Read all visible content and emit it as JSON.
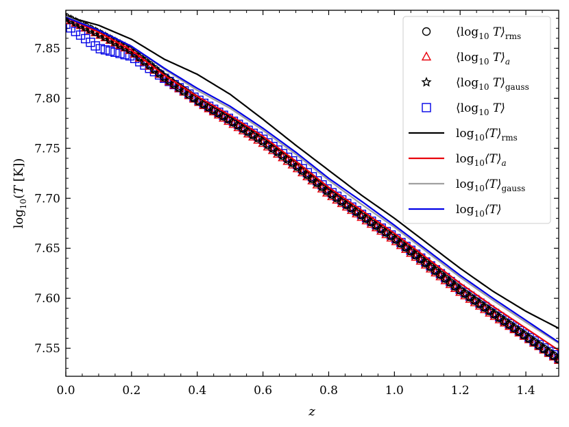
{
  "chart_data": {
    "type": "line",
    "xlabel": "z",
    "ylabel": "log10(T [K])",
    "xlim": [
      0.0,
      1.5
    ],
    "ylim": [
      7.522,
      7.888
    ],
    "xticks": [
      0.0,
      0.2,
      0.4,
      0.6,
      0.8,
      1.0,
      1.2,
      1.4
    ],
    "xtick_labels": [
      "0.0",
      "0.2",
      "0.4",
      "0.6",
      "0.8",
      "1.0",
      "1.2",
      "1.4"
    ],
    "yticks": [
      7.55,
      7.6,
      7.65,
      7.7,
      7.75,
      7.8,
      7.85
    ],
    "ytick_labels": [
      "7.55",
      "7.60",
      "7.65",
      "7.70",
      "7.75",
      "7.80",
      "7.85"
    ],
    "grid": false,
    "legend_position": "top-right",
    "series": [
      {
        "name": "⟨log10 T⟩rms",
        "label_main": "⟨log",
        "label_sub": "10",
        "label_rest": " T⟩",
        "label_tail": "rms",
        "kind": "marker",
        "marker": "circle",
        "color": "#000000",
        "x": [
          0.0,
          0.1,
          0.2,
          0.3,
          0.4,
          0.5,
          0.6,
          0.7,
          0.8,
          0.9,
          1.0,
          1.1,
          1.2,
          1.3,
          1.4,
          1.5
        ],
        "y": [
          7.881,
          7.865,
          7.848,
          7.821,
          7.798,
          7.778,
          7.757,
          7.733,
          7.706,
          7.683,
          7.66,
          7.634,
          7.608,
          7.585,
          7.562,
          7.539
        ]
      },
      {
        "name": "⟨log10 T⟩a",
        "label_main": "⟨log",
        "label_sub": "10",
        "label_rest": " T⟩",
        "label_tail": "a",
        "kind": "marker",
        "marker": "triangle",
        "color": "#e8000b",
        "x": [
          0.0,
          0.1,
          0.2,
          0.3,
          0.4,
          0.5,
          0.6,
          0.7,
          0.8,
          0.9,
          1.0,
          1.1,
          1.2,
          1.3,
          1.4,
          1.5
        ],
        "y": [
          7.88,
          7.864,
          7.847,
          7.82,
          7.797,
          7.776,
          7.755,
          7.731,
          7.704,
          7.681,
          7.658,
          7.632,
          7.606,
          7.583,
          7.561,
          7.538
        ]
      },
      {
        "name": "⟨log10 T⟩gauss",
        "label_main": "⟨log",
        "label_sub": "10",
        "label_rest": " T⟩",
        "label_tail": "gauss",
        "kind": "marker",
        "marker": "star",
        "color": "#000000",
        "x": [
          0.0,
          0.1,
          0.2,
          0.3,
          0.4,
          0.5,
          0.6,
          0.7,
          0.8,
          0.9,
          1.0,
          1.1,
          1.2,
          1.3,
          1.4,
          1.5
        ],
        "y": [
          7.881,
          7.865,
          7.848,
          7.821,
          7.798,
          7.778,
          7.757,
          7.733,
          7.706,
          7.683,
          7.66,
          7.634,
          7.608,
          7.585,
          7.562,
          7.539
        ]
      },
      {
        "name": "⟨log10 T⟩",
        "label_main": "⟨log",
        "label_sub": "10",
        "label_rest": " T⟩",
        "label_tail": "",
        "kind": "marker",
        "marker": "square",
        "color": "#0000e6",
        "x": [
          0.0,
          0.1,
          0.2,
          0.3,
          0.4,
          0.5,
          0.6,
          0.7,
          0.8,
          0.9,
          1.0,
          1.1,
          1.2,
          1.3,
          1.4,
          1.5
        ],
        "y": [
          7.874,
          7.85,
          7.842,
          7.82,
          7.799,
          7.779,
          7.759,
          7.735,
          7.708,
          7.684,
          7.661,
          7.635,
          7.609,
          7.586,
          7.563,
          7.54
        ]
      },
      {
        "name": "log10⟨T⟩rms",
        "label_main": "log",
        "label_sub": "10",
        "label_rest": "⟨T⟩",
        "label_tail": "rms",
        "kind": "line",
        "color": "#000000",
        "x": [
          0.0,
          0.1,
          0.2,
          0.3,
          0.4,
          0.5,
          0.6,
          0.7,
          0.8,
          0.9,
          1.0,
          1.1,
          1.2,
          1.3,
          1.4,
          1.5
        ],
        "y": [
          7.882,
          7.873,
          7.859,
          7.839,
          7.824,
          7.804,
          7.779,
          7.753,
          7.728,
          7.703,
          7.68,
          7.655,
          7.63,
          7.607,
          7.587,
          7.57
        ]
      },
      {
        "name": "log10⟨T⟩a",
        "label_main": "log",
        "label_sub": "10",
        "label_rest": "⟨T⟩",
        "label_tail": "a",
        "kind": "line",
        "color": "#e8000b",
        "x": [
          0.0,
          0.1,
          0.2,
          0.3,
          0.4,
          0.5,
          0.6,
          0.7,
          0.8,
          0.9,
          1.0,
          1.1,
          1.2,
          1.3,
          1.4,
          1.5
        ],
        "y": [
          7.881,
          7.866,
          7.848,
          7.823,
          7.802,
          7.783,
          7.762,
          7.737,
          7.711,
          7.688,
          7.665,
          7.64,
          7.615,
          7.592,
          7.57,
          7.548
        ]
      },
      {
        "name": "log10⟨T⟩gauss",
        "label_main": "log",
        "label_sub": "10",
        "label_rest": "⟨T⟩",
        "label_tail": "gauss",
        "kind": "line",
        "color": "#a0a0a0",
        "x": [
          0.0,
          0.1,
          0.2,
          0.3,
          0.4,
          0.5,
          0.6,
          0.7,
          0.8,
          0.9,
          1.0,
          1.1,
          1.2,
          1.3,
          1.4,
          1.5
        ],
        "y": [
          7.882,
          7.868,
          7.852,
          7.829,
          7.808,
          7.79,
          7.768,
          7.744,
          7.718,
          7.694,
          7.671,
          7.646,
          7.621,
          7.598,
          7.576,
          7.555
        ]
      },
      {
        "name": "log10⟨T⟩",
        "label_main": "log",
        "label_sub": "10",
        "label_rest": "⟨T⟩",
        "label_tail": "",
        "kind": "line",
        "color": "#0000e6",
        "x": [
          0.0,
          0.1,
          0.2,
          0.3,
          0.4,
          0.5,
          0.6,
          0.7,
          0.8,
          0.9,
          1.0,
          1.1,
          1.2,
          1.3,
          1.4,
          1.5
        ],
        "y": [
          7.881,
          7.868,
          7.852,
          7.83,
          7.81,
          7.792,
          7.77,
          7.746,
          7.72,
          7.697,
          7.673,
          7.648,
          7.623,
          7.6,
          7.578,
          7.556
        ]
      }
    ]
  }
}
